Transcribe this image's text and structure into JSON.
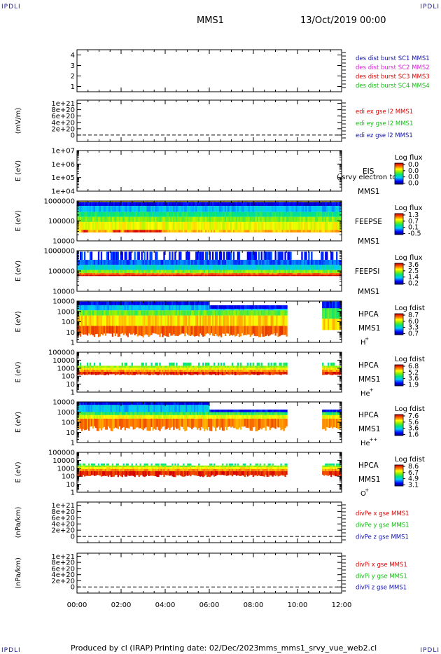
{
  "corner_label": "IPDLI",
  "header": {
    "mission": "MMS1",
    "date": "13/Oct/2019 00:00"
  },
  "footer": {
    "produced_by": "Produced by cl (IRAP)",
    "printing_date": "Printing date: 02/Dec/2023",
    "script_name": "mms_mms1_srvy_vue_web2.cl"
  },
  "colors": {
    "blue": "#1010b0",
    "magenta": "#e020e0",
    "red": "#e00000",
    "green": "#10c010"
  },
  "chart_data": [
    {
      "type": "line",
      "id": "p1",
      "ylim": [
        0.5,
        4.5
      ],
      "yticks": [
        "1",
        "2",
        "3",
        "4"
      ],
      "legend": [
        {
          "label": "des dist burst SC1 MMS1",
          "color": "#1010b0"
        },
        {
          "label": "des dist burst SC2 MMS2",
          "color": "#e020e0"
        },
        {
          "label": "des dist burst SC3 MMS3",
          "color": "#e00000"
        },
        {
          "label": "des dist burst SC4 MMS4",
          "color": "#10c010"
        }
      ]
    },
    {
      "type": "line",
      "id": "p2",
      "ylabel": "(mV/m)",
      "ylim": [
        -2e+20,
        1.1e+21
      ],
      "yticks": [
        "0",
        "2e+20",
        "4e+20",
        "6e+20",
        "8e+20",
        "1e+21"
      ],
      "legend": [
        {
          "label": "edi ex gse l2 MMS1",
          "color": "#e00000"
        },
        {
          "label": "edi ey gse l2 MMS1",
          "color": "#10c010"
        },
        {
          "label": "edi ez gse l2 MMS1",
          "color": "#1010b0"
        }
      ]
    },
    {
      "type": "heatmap",
      "id": "p3",
      "ylabel": "E (eV)",
      "ylog": [
        4,
        7
      ],
      "yticks": [
        "1e+04",
        "1e+05",
        "1e+06",
        "1e+07"
      ],
      "instrument": "EIS",
      "instrument_line2": "MMS1",
      "overlay": "( srvy electron to",
      "colorbar": {
        "title": "Log flux",
        "ticks": [
          "0.0",
          "0.0",
          "0.0",
          "0.0"
        ]
      }
    },
    {
      "type": "heatmap",
      "id": "p4",
      "ylabel": "E (eV)",
      "ylog": [
        4,
        6
      ],
      "yticks": [
        "10000",
        "100000",
        "1000000"
      ],
      "instrument": "FEEPSE",
      "instrument_line2": "MMS1",
      "colorbar": {
        "title": "Log flux",
        "ticks": [
          "1.3",
          "0.7",
          "0.1",
          "-0.5"
        ]
      }
    },
    {
      "type": "heatmap",
      "id": "p5",
      "ylabel": "E (eV)",
      "ylog": [
        4,
        6
      ],
      "yticks": [
        "10000",
        "100000",
        "1000000"
      ],
      "instrument": "FEEPSI",
      "instrument_line2": "MMS1",
      "colorbar": {
        "title": "Log flux",
        "ticks": [
          "3.6",
          "2.5",
          "1.4",
          "0.2"
        ]
      }
    },
    {
      "type": "heatmap",
      "id": "p6",
      "ylabel": "E (eV)",
      "ylog": [
        0,
        4
      ],
      "yticks": [
        "1",
        "10",
        "100",
        "1000",
        "10000"
      ],
      "instrument": "HPCA",
      "instrument_line2": "MMS1",
      "species": "H",
      "charge": "+",
      "colorbar": {
        "title": "Log fdist",
        "ticks": [
          "8.7",
          "6.0",
          "3.3",
          "0.7"
        ]
      }
    },
    {
      "type": "heatmap",
      "id": "p7",
      "ylabel": "E (eV)",
      "ylog": [
        0,
        5
      ],
      "yticks": [
        "1",
        "10",
        "100",
        "1000",
        "10000",
        "100000"
      ],
      "instrument": "HPCA",
      "instrument_line2": "MMS1",
      "species": "He",
      "charge": "+",
      "colorbar": {
        "title": "Log fdist",
        "ticks": [
          "6.8",
          "5.2",
          "3.6",
          "1.9"
        ]
      }
    },
    {
      "type": "heatmap",
      "id": "p8",
      "ylabel": "E (eV)",
      "ylog": [
        0,
        4
      ],
      "yticks": [
        "1",
        "10",
        "100",
        "1000",
        "10000"
      ],
      "instrument": "HPCA",
      "instrument_line2": "MMS1",
      "species": "He",
      "charge": "++",
      "colorbar": {
        "title": "Log fdist",
        "ticks": [
          "7.6",
          "5.6",
          "3.6",
          "1.6"
        ]
      }
    },
    {
      "type": "heatmap",
      "id": "p9",
      "ylabel": "E (eV)",
      "ylog": [
        0,
        5
      ],
      "yticks": [
        "1",
        "10",
        "100",
        "1000",
        "10000",
        "100000"
      ],
      "instrument": "HPCA",
      "instrument_line2": "MMS1",
      "species": "O",
      "charge": "+",
      "colorbar": {
        "title": "Log fdist",
        "ticks": [
          "8.6",
          "6.7",
          "4.9",
          "3.1"
        ]
      }
    },
    {
      "type": "line",
      "id": "p10",
      "ylabel": "(nPa/km)",
      "ylim": [
        -2e+20,
        1.1e+21
      ],
      "yticks": [
        "0",
        "2e+20",
        "4e+20",
        "6e+20",
        "8e+20",
        "1e+21"
      ],
      "legend": [
        {
          "label": "divPe x gse MMS1",
          "color": "#e00000"
        },
        {
          "label": "divPe y gse MMS1",
          "color": "#10c010"
        },
        {
          "label": "divPe z gse MMS1",
          "color": "#1010b0"
        }
      ]
    },
    {
      "type": "line",
      "id": "p11",
      "ylabel": "(nPa/km)",
      "ylim": [
        -2e+20,
        1.1e+21
      ],
      "yticks": [
        "0",
        "2e+20",
        "4e+20",
        "6e+20",
        "8e+20",
        "1e+21"
      ],
      "legend": [
        {
          "label": "divPi x gse MMS1",
          "color": "#e00000"
        },
        {
          "label": "divPi y gse MMS1",
          "color": "#10c010"
        },
        {
          "label": "divPi z gse MMS1",
          "color": "#1010b0"
        }
      ]
    }
  ],
  "x_axis": {
    "ticks": [
      "00:00",
      "02:00",
      "04:00",
      "06:00",
      "08:00",
      "10:00",
      "12:00"
    ]
  }
}
